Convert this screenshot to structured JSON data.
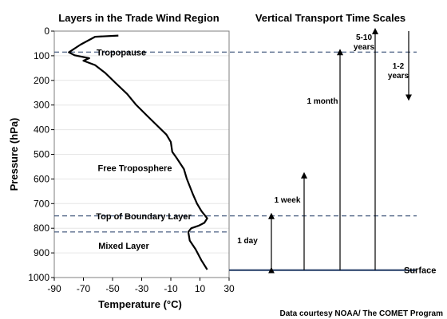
{
  "chart_data": {
    "type": "line",
    "title_left": "Layers in the Trade Wind Region",
    "title_right": "Vertical Transport Time Scales",
    "xlabel": "Temperature (°C)",
    "ylabel": "Pressure (hPa)",
    "xlim": [
      -90,
      30
    ],
    "ylim": [
      1000,
      0
    ],
    "xticks": [
      "-90",
      "-70",
      "-50",
      "-30",
      "-10",
      "10",
      "30"
    ],
    "yticks": [
      "0",
      "100",
      "200",
      "300",
      "400",
      "500",
      "600",
      "700",
      "800",
      "900",
      "1000"
    ],
    "series": [
      {
        "x": [
          -46,
          -62,
          -72,
          -80,
          -76,
          -66,
          -70,
          -62,
          -55,
          -48,
          -40,
          -34,
          -26,
          -20,
          -13,
          -10,
          -9,
          -6,
          -1,
          1,
          5,
          8,
          11,
          13,
          15,
          13,
          9,
          4,
          2,
          3,
          7,
          11,
          15
        ],
        "y": [
          18,
          23,
          55,
          86,
          98,
          110,
          120,
          138,
          170,
          210,
          255,
          298,
          345,
          380,
          420,
          450,
          490,
          515,
          560,
          600,
          660,
          700,
          730,
          745,
          760,
          778,
          790,
          800,
          815,
          850,
          885,
          930,
          968
        ]
      }
    ],
    "levels": [
      {
        "label": "Tropopause",
        "pressure": 85,
        "style": "dashed",
        "extends_right": true
      },
      {
        "label": "Top of Boundary Layer",
        "pressure": 750,
        "style": "dashed",
        "extends_right": true
      },
      {
        "label": "",
        "pressure": 815,
        "style": "dashed",
        "extends_right": false
      },
      {
        "label": "Surface",
        "pressure": 970,
        "style": "solid",
        "extends_right": true
      }
    ],
    "regions": [
      {
        "label": "Free Troposphere",
        "pressure": 555
      },
      {
        "label": "Mixed Layer",
        "pressure": 870
      }
    ],
    "timescales": [
      {
        "label": "1 day",
        "from": 970,
        "to": 750,
        "direction": "both"
      },
      {
        "label": "1 week",
        "from": 970,
        "to": 585,
        "direction": "up"
      },
      {
        "label": "1 month",
        "from": 970,
        "to": 85,
        "direction": "up"
      },
      {
        "label": "5-10 years",
        "from": 970,
        "to": 0,
        "direction": "up"
      },
      {
        "label": "1-2 years",
        "from": 0,
        "to": 270,
        "direction": "down"
      }
    ],
    "credit": "Data courtesy NOAA/ The COMET Program"
  },
  "colors": {
    "profile": "#000000",
    "dashed_level": "#1f3864",
    "surface_line": "#1f3864",
    "grid": "#e6e6e6"
  }
}
